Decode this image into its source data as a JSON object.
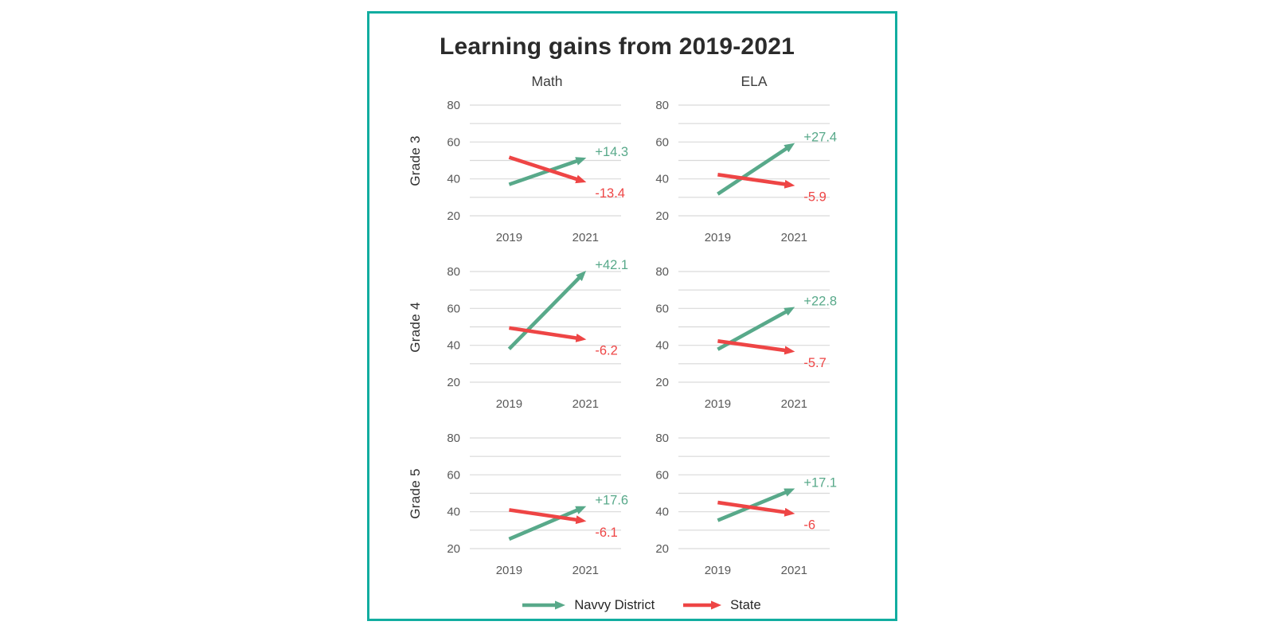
{
  "title": "Learning gains from 2019-2021",
  "columns": [
    "Math",
    "ELA"
  ],
  "rows": [
    "Grade 3",
    "Grade 4",
    "Grade 5"
  ],
  "legend": {
    "items": [
      {
        "label": "Navvy District",
        "color": "#58a98a"
      },
      {
        "label": "State",
        "color": "#ee4545"
      }
    ]
  },
  "colors": {
    "district_green": "#58a98a",
    "state_red": "#ee4545",
    "card_border_teal": "#12ada0",
    "gridline_gray": "#d9d9d9",
    "axis_text_gray": "#595959",
    "header_text_gray": "#3d3d3d",
    "grade_text": "#2f2f2f",
    "title_text": "#2b2b2b"
  },
  "axis": {
    "x_ticks": [
      "2019",
      "2021"
    ],
    "y_tick_labels": [
      80,
      60,
      40,
      20
    ],
    "ylim": [
      20,
      80
    ],
    "grid_step": 10,
    "grid_on": true
  },
  "chart_data": [
    {
      "type": "line",
      "grade": "Grade 3",
      "subject": "Math",
      "x": [
        "2019",
        "2021"
      ],
      "ylim": [
        20,
        80
      ],
      "series": [
        {
          "name": "Navvy District",
          "values": [
            37.0,
            51.3
          ],
          "gain": 14.3,
          "gain_label": "+14.3",
          "color": "#58a98a"
        },
        {
          "name": "State",
          "values": [
            51.7,
            38.3
          ],
          "gain": -13.4,
          "gain_label": "-13.4",
          "color": "#ee4545"
        }
      ]
    },
    {
      "type": "line",
      "grade": "Grade 3",
      "subject": "ELA",
      "x": [
        "2019",
        "2021"
      ],
      "ylim": [
        20,
        80
      ],
      "series": [
        {
          "name": "Navvy District",
          "values": [
            31.8,
            59.2
          ],
          "gain": 27.4,
          "gain_label": "+27.4",
          "color": "#58a98a"
        },
        {
          "name": "State",
          "values": [
            42.3,
            36.4
          ],
          "gain": -5.9,
          "gain_label": "-5.9",
          "color": "#ee4545"
        }
      ]
    },
    {
      "type": "line",
      "grade": "Grade 4",
      "subject": "Math",
      "x": [
        "2019",
        "2021"
      ],
      "ylim": [
        20,
        80
      ],
      "series": [
        {
          "name": "Navvy District",
          "values": [
            38.0,
            80.1
          ],
          "gain": 42.1,
          "gain_label": "+42.1",
          "color": "#58a98a"
        },
        {
          "name": "State",
          "values": [
            49.4,
            43.2
          ],
          "gain": -6.2,
          "gain_label": "-6.2",
          "color": "#ee4545"
        }
      ]
    },
    {
      "type": "line",
      "grade": "Grade 4",
      "subject": "ELA",
      "x": [
        "2019",
        "2021"
      ],
      "ylim": [
        20,
        80
      ],
      "series": [
        {
          "name": "Navvy District",
          "values": [
            37.8,
            60.6
          ],
          "gain": 22.8,
          "gain_label": "+22.8",
          "color": "#58a98a"
        },
        {
          "name": "State",
          "values": [
            42.3,
            36.6
          ],
          "gain": -5.7,
          "gain_label": "-5.7",
          "color": "#ee4545"
        }
      ]
    },
    {
      "type": "line",
      "grade": "Grade 5",
      "subject": "Math",
      "x": [
        "2019",
        "2021"
      ],
      "ylim": [
        20,
        80
      ],
      "series": [
        {
          "name": "Navvy District",
          "values": [
            25.2,
            42.8
          ],
          "gain": 17.6,
          "gain_label": "+17.6",
          "color": "#58a98a"
        },
        {
          "name": "State",
          "values": [
            41.0,
            34.9
          ],
          "gain": -6.1,
          "gain_label": "-6.1",
          "color": "#ee4545"
        }
      ]
    },
    {
      "type": "line",
      "grade": "Grade 5",
      "subject": "ELA",
      "x": [
        "2019",
        "2021"
      ],
      "ylim": [
        20,
        80
      ],
      "series": [
        {
          "name": "Navvy District",
          "values": [
            35.3,
            52.4
          ],
          "gain": 17.1,
          "gain_label": "+17.1",
          "color": "#58a98a"
        },
        {
          "name": "State",
          "values": [
            45.0,
            39.0
          ],
          "gain": -6.0,
          "gain_label": "-6",
          "color": "#ee4545"
        }
      ]
    }
  ]
}
